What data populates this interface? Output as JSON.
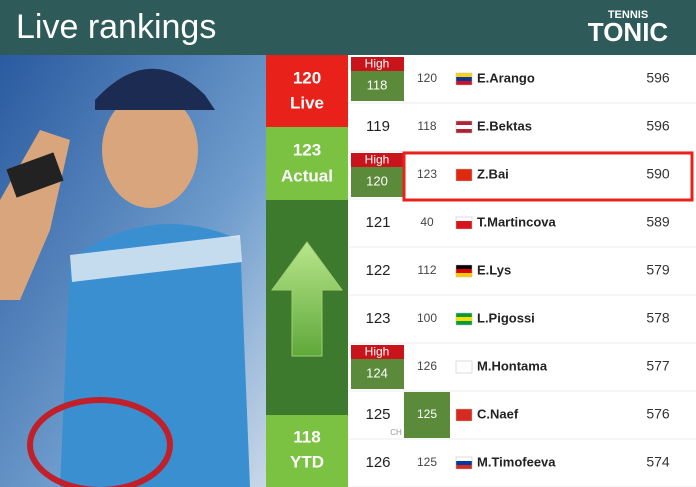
{
  "header": {
    "title": "Live rankings",
    "logo_top": "TENNIS",
    "logo": "TONIC"
  },
  "summary": {
    "live": {
      "value": 120,
      "label": "Live"
    },
    "actual": {
      "value": 123,
      "label": "Actual"
    },
    "ytd": {
      "value": 118,
      "label": "YTD"
    }
  },
  "rows": [
    {
      "rank": 118,
      "high": "High",
      "prev": 120,
      "name": "E.Arango",
      "points": 596
    },
    {
      "rank": 119,
      "prev": 118,
      "name": "E.Bektas",
      "points": 596
    },
    {
      "rank": 120,
      "high": "High",
      "prev": 123,
      "name": "Z.Bai",
      "points": 590,
      "highlighted": true
    },
    {
      "rank": 121,
      "prev": 40,
      "name": "T.Martincova",
      "points": 589
    },
    {
      "rank": 122,
      "prev": 112,
      "name": "E.Lys",
      "points": 579
    },
    {
      "rank": 123,
      "prev": 100,
      "name": "L.Pigossi",
      "points": 578
    },
    {
      "rank": 124,
      "high": "High",
      "prev": 126,
      "name": "M.Hontama",
      "points": 577
    },
    {
      "rank": 125,
      "ch": "CH",
      "prev": 125,
      "name": "C.Naef",
      "points": 576
    },
    {
      "rank": 126,
      "prev": 125,
      "name": "M.Timofeeva",
      "points": 574
    }
  ]
}
